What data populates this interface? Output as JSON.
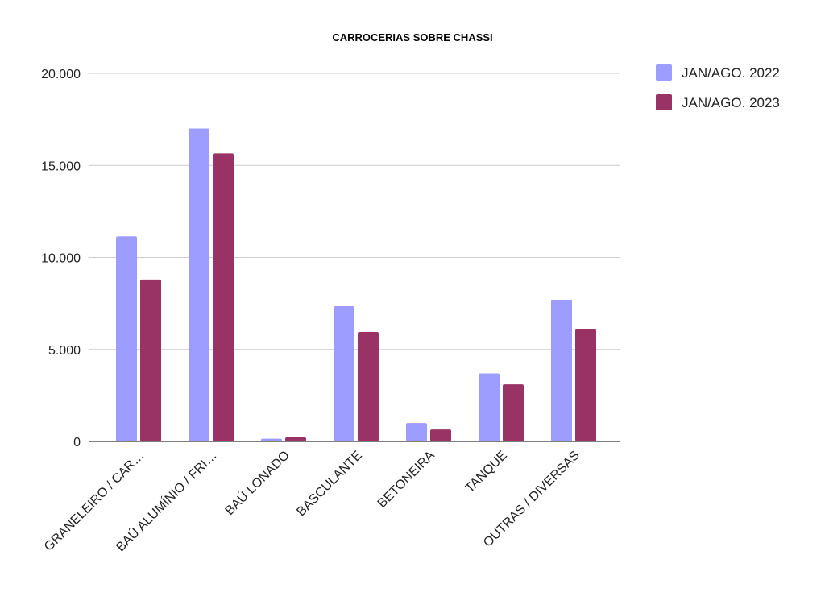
{
  "chart_data": {
    "type": "bar",
    "title": "CARROCERIAS SOBRE CHASSI",
    "xlabel": "",
    "ylabel": "",
    "ylim": [
      0,
      20000
    ],
    "yticks": [
      0,
      5000,
      10000,
      15000,
      20000
    ],
    "ytick_labels": [
      "0",
      "5.000",
      "10.000",
      "15.000",
      "20.000"
    ],
    "grid": true,
    "legend_position": "right",
    "categories": [
      "GRANELEIRO / CAR…",
      "BAÚ ALUMÍNIO / FRI…",
      "BAÚ LONADO",
      "BASCULANTE",
      "BETONEIRA",
      "TANQUE",
      "OUTRAS / DIVERSAS"
    ],
    "series": [
      {
        "name": "JAN/AGO. 2022",
        "color": "#9d9cff",
        "values": [
          11150,
          17000,
          150,
          7350,
          1000,
          3700,
          7700
        ]
      },
      {
        "name": "JAN/AGO. 2023",
        "color": "#993366",
        "values": [
          8800,
          15650,
          220,
          5950,
          650,
          3100,
          6100
        ]
      }
    ]
  }
}
